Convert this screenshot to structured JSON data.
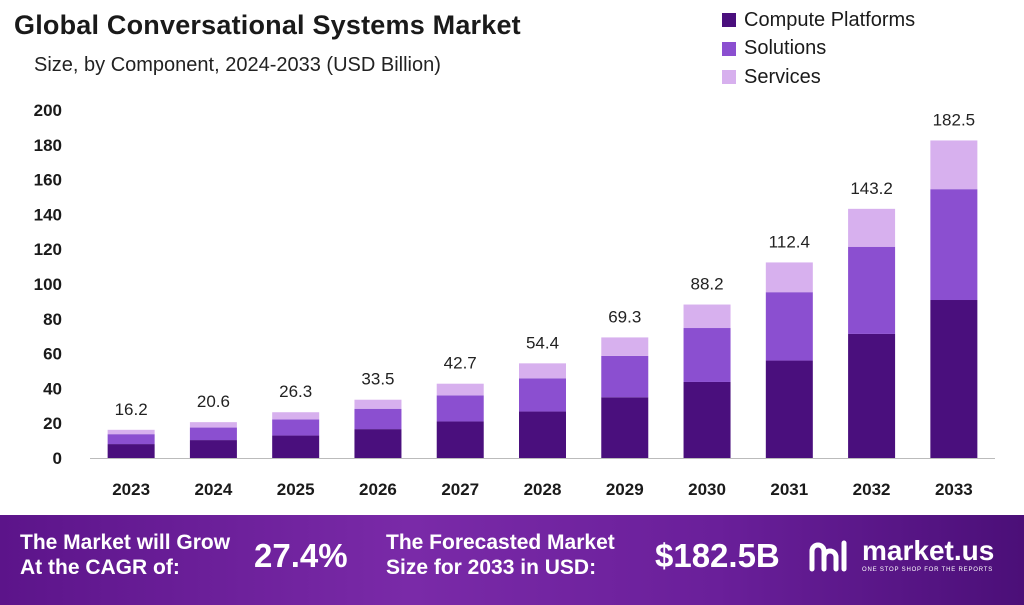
{
  "chart_data": {
    "type": "bar",
    "stacked": true,
    "title": "Global Conversational Systems Market",
    "subtitle": "Size, by Component, 2024-2033 (USD Billion)",
    "categories": [
      "2023",
      "2024",
      "2025",
      "2026",
      "2027",
      "2028",
      "2029",
      "2030",
      "2031",
      "2032",
      "2033"
    ],
    "series": [
      {
        "name": "Compute Platforms",
        "color": "#4a0f7d",
        "values": [
          8.0,
          10.3,
          12.9,
          16.6,
          21.0,
          26.7,
          34.9,
          43.7,
          56.0,
          71.3,
          90.8
        ]
      },
      {
        "name": "Solutions",
        "color": "#8b4fd0",
        "values": [
          5.7,
          7.2,
          9.3,
          11.7,
          15.0,
          19.1,
          23.8,
          31.0,
          39.3,
          50.1,
          63.7
        ]
      },
      {
        "name": "Services",
        "color": "#d7b0ee",
        "values": [
          2.5,
          3.1,
          4.1,
          5.2,
          6.7,
          8.6,
          10.6,
          13.5,
          17.1,
          21.8,
          28.0
        ]
      }
    ],
    "totals": [
      "16.2",
      "20.6",
      "26.3",
      "33.5",
      "42.7",
      "54.4",
      "69.3",
      "88.2",
      "112.4",
      "143.2",
      "182.5"
    ],
    "yticks": [
      "0",
      "20",
      "40",
      "60",
      "80",
      "100",
      "120",
      "140",
      "160",
      "180",
      "200"
    ],
    "ylim": [
      0,
      200
    ],
    "grid": false,
    "legend_position": "top-right"
  },
  "banner": {
    "cagr_text_line1": "The Market will Grow",
    "cagr_text_line2": "At the CAGR of:",
    "cagr_value": "27.4%",
    "forecast_text_line1": "The Forecasted Market",
    "forecast_text_line2": "Size for 2033 in USD:",
    "forecast_value": "$182.5B",
    "logo_text": "market.us",
    "logo_tagline": "ONE STOP SHOP FOR THE REPORTS"
  },
  "colors": {
    "banner_start": "#5c148a",
    "banner_end": "#4b0f78",
    "axis": "#bbbbbb"
  }
}
